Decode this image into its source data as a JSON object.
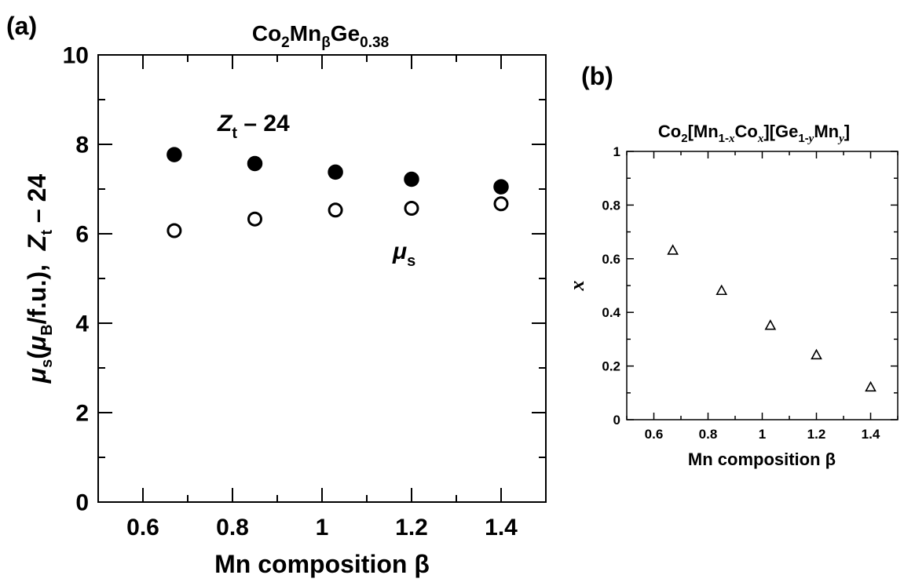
{
  "chart_data": [
    {
      "panel_label": "(a)",
      "type": "scatter",
      "title": {
        "base": "Co",
        "sub1": "2",
        "mid": "Mn",
        "sub2": "β",
        "end": "Ge",
        "sub3": "0.38"
      },
      "xlabel": "Mn composition β",
      "ylabel": {
        "p1": "μ",
        "p1_sub": "s",
        "p2": "(",
        "p3": "μ",
        "p3_sub": "B",
        "p4": "/f.u.),  ",
        "p5": "Z",
        "p5_sub": "t",
        "p6": " – 24"
      },
      "xlim": [
        0.5,
        1.5
      ],
      "ylim": [
        0,
        10
      ],
      "xticks": [
        "0.6",
        "0.8",
        "1",
        "1.2",
        "1.4"
      ],
      "yticks": [
        "0",
        "2",
        "4",
        "6",
        "8",
        "10"
      ],
      "grid": false,
      "series": [
        {
          "name": "Zt – 24",
          "marker": "filled-circle",
          "x": [
            0.67,
            0.85,
            1.03,
            1.2,
            1.4
          ],
          "y": [
            7.77,
            7.57,
            7.38,
            7.22,
            7.05
          ]
        },
        {
          "name": "μs",
          "marker": "open-circle",
          "x": [
            0.67,
            0.85,
            1.03,
            1.2,
            1.4
          ],
          "y": [
            6.07,
            6.33,
            6.53,
            6.57,
            6.67
          ]
        }
      ],
      "annotations": [
        {
          "text_main": "Z",
          "text_sub": "t",
          "text_tail": " – 24",
          "series": "Zt – 24"
        },
        {
          "text_main": "μ",
          "text_sub": "s",
          "text_tail": "",
          "series": "μs"
        }
      ]
    },
    {
      "panel_label": "(b)",
      "type": "scatter",
      "title": {
        "t1": "Co",
        "t1_sub": "2",
        "t2": "[Mn",
        "t2_sub": "1-",
        "t2_subi": "x",
        "t3": "Co",
        "t3_subi": "x",
        "t4": "][Ge",
        "t4_sub": "1-",
        "t4_subi": "y",
        "t5": "Mn",
        "t5_subi": "y",
        "t6": "]"
      },
      "xlabel": "Mn composition β",
      "ylabel": "x",
      "xlim": [
        0.5,
        1.5
      ],
      "ylim": [
        0,
        1
      ],
      "xticks": [
        "0.6",
        "0.8",
        "1",
        "1.2",
        "1.4"
      ],
      "yticks": [
        "0",
        "0.2",
        "0.4",
        "0.6",
        "0.8",
        "1"
      ],
      "grid": false,
      "series": [
        {
          "name": "",
          "marker": "open-triangle",
          "x": [
            0.67,
            0.85,
            1.03,
            1.2,
            1.4
          ],
          "y": [
            0.63,
            0.48,
            0.35,
            0.24,
            0.12
          ]
        }
      ]
    }
  ]
}
